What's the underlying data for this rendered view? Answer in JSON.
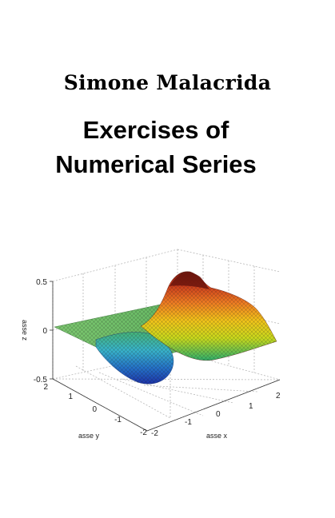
{
  "cover": {
    "author": "Simone Malacrida",
    "title_line1": "Exercises of",
    "title_line2": "Numerical Series"
  },
  "plot": {
    "z_label": "asse z",
    "y_label": "asse y",
    "x_label": "asse x",
    "z_ticks": [
      "0.5",
      "0",
      "-0.5"
    ],
    "y_ticks": [
      "2",
      "1",
      "0",
      "-1",
      "-2"
    ],
    "x_ticks": [
      "-2",
      "-1",
      "0",
      "1",
      "2"
    ]
  }
}
